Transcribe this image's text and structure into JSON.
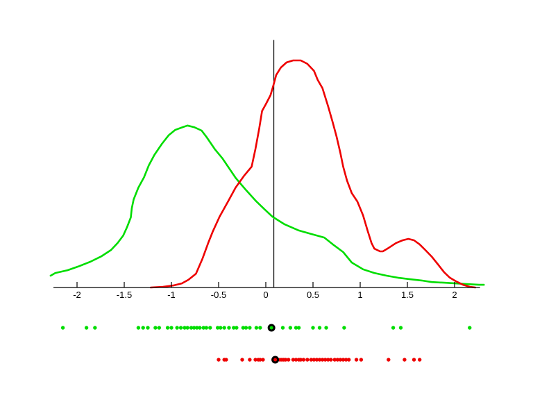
{
  "figure": {
    "background_color": "#ffffff",
    "axis_color": "#000000",
    "title": "",
    "green_color": "#00dd00",
    "red_color": "#ee0000"
  },
  "chart_data": {
    "type": "line",
    "title": "",
    "xlabel": "",
    "ylabel": "",
    "grid": false,
    "legend": null,
    "xlim": [
      -2.25,
      2.27
    ],
    "ylim": [
      0,
      1.09
    ],
    "y_units_note": "y axis unlabeled; density in relative units, red peak = 1",
    "x_ticks": [
      -2,
      -1.5,
      -1,
      -0.5,
      0,
      0.5,
      1,
      1.5,
      2
    ],
    "x_tick_labels": [
      "-2",
      "-1.5",
      "-1",
      "-0.5",
      "0",
      "0.5",
      "1",
      "1.5",
      "2"
    ],
    "vertical_line": {
      "x": 0.085,
      "y_bottom": 0,
      "y_top": 1.09,
      "color": "#000000"
    },
    "series": [
      {
        "name": "green-density",
        "color": "#00dd00",
        "points": [
          [
            -2.28,
            0.052
          ],
          [
            -2.23,
            0.064
          ],
          [
            -2.1,
            0.076
          ],
          [
            -1.99,
            0.092
          ],
          [
            -1.86,
            0.113
          ],
          [
            -1.74,
            0.138
          ],
          [
            -1.64,
            0.165
          ],
          [
            -1.57,
            0.196
          ],
          [
            -1.51,
            0.229
          ],
          [
            -1.47,
            0.266
          ],
          [
            -1.43,
            0.309
          ],
          [
            -1.42,
            0.349
          ],
          [
            -1.4,
            0.388
          ],
          [
            -1.35,
            0.44
          ],
          [
            -1.29,
            0.486
          ],
          [
            -1.24,
            0.538
          ],
          [
            -1.18,
            0.584
          ],
          [
            -1.1,
            0.633
          ],
          [
            -1.03,
            0.67
          ],
          [
            -0.96,
            0.694
          ],
          [
            -0.88,
            0.706
          ],
          [
            -0.83,
            0.713
          ],
          [
            -0.76,
            0.706
          ],
          [
            -0.68,
            0.691
          ],
          [
            -0.63,
            0.664
          ],
          [
            -0.54,
            0.609
          ],
          [
            -0.46,
            0.569
          ],
          [
            -0.4,
            0.532
          ],
          [
            -0.32,
            0.483
          ],
          [
            -0.22,
            0.434
          ],
          [
            -0.1,
            0.379
          ],
          [
            -0.01,
            0.343
          ],
          [
            0.07,
            0.312
          ],
          [
            0.2,
            0.278
          ],
          [
            0.35,
            0.251
          ],
          [
            0.49,
            0.235
          ],
          [
            0.62,
            0.22
          ],
          [
            0.71,
            0.19
          ],
          [
            0.82,
            0.156
          ],
          [
            0.91,
            0.11
          ],
          [
            1.03,
            0.08
          ],
          [
            1.15,
            0.064
          ],
          [
            1.28,
            0.052
          ],
          [
            1.4,
            0.043
          ],
          [
            1.52,
            0.037
          ],
          [
            1.65,
            0.031
          ],
          [
            1.76,
            0.024
          ],
          [
            1.89,
            0.021
          ],
          [
            2.01,
            0.018
          ],
          [
            2.13,
            0.015
          ],
          [
            2.26,
            0.012
          ],
          [
            2.31,
            0.012
          ]
        ]
      },
      {
        "name": "red-density",
        "color": "#ee0000",
        "points": [
          [
            -1.22,
            0.0
          ],
          [
            -1.09,
            0.003
          ],
          [
            -0.98,
            0.009
          ],
          [
            -0.89,
            0.018
          ],
          [
            -0.82,
            0.034
          ],
          [
            -0.74,
            0.061
          ],
          [
            -0.67,
            0.128
          ],
          [
            -0.61,
            0.196
          ],
          [
            -0.56,
            0.248
          ],
          [
            -0.49,
            0.312
          ],
          [
            -0.4,
            0.379
          ],
          [
            -0.32,
            0.44
          ],
          [
            -0.23,
            0.492
          ],
          [
            -0.15,
            0.532
          ],
          [
            -0.11,
            0.609
          ],
          [
            -0.07,
            0.7
          ],
          [
            -0.04,
            0.777
          ],
          [
            0.0,
            0.807
          ],
          [
            0.05,
            0.847
          ],
          [
            0.08,
            0.89
          ],
          [
            0.11,
            0.936
          ],
          [
            0.16,
            0.969
          ],
          [
            0.22,
            0.991
          ],
          [
            0.29,
            1.0
          ],
          [
            0.37,
            1.0
          ],
          [
            0.44,
            0.985
          ],
          [
            0.51,
            0.954
          ],
          [
            0.55,
            0.914
          ],
          [
            0.6,
            0.878
          ],
          [
            0.66,
            0.798
          ],
          [
            0.71,
            0.725
          ],
          [
            0.75,
            0.664
          ],
          [
            0.79,
            0.593
          ],
          [
            0.82,
            0.532
          ],
          [
            0.86,
            0.471
          ],
          [
            0.91,
            0.416
          ],
          [
            0.97,
            0.379
          ],
          [
            1.03,
            0.318
          ],
          [
            1.08,
            0.248
          ],
          [
            1.12,
            0.196
          ],
          [
            1.15,
            0.171
          ],
          [
            1.21,
            0.159
          ],
          [
            1.24,
            0.159
          ],
          [
            1.3,
            0.174
          ],
          [
            1.38,
            0.196
          ],
          [
            1.45,
            0.208
          ],
          [
            1.51,
            0.214
          ],
          [
            1.57,
            0.208
          ],
          [
            1.63,
            0.19
          ],
          [
            1.69,
            0.165
          ],
          [
            1.76,
            0.135
          ],
          [
            1.82,
            0.104
          ],
          [
            1.89,
            0.067
          ],
          [
            1.95,
            0.043
          ],
          [
            2.01,
            0.028
          ],
          [
            2.09,
            0.012
          ],
          [
            2.16,
            0.003
          ],
          [
            2.22,
            0.0
          ]
        ]
      }
    ],
    "rug_rows": [
      {
        "name": "green-samples",
        "color": "#00dd00",
        "highlight_x": 0.06,
        "values": [
          -2.15,
          -1.9,
          -1.81,
          -1.35,
          -1.3,
          -1.25,
          -1.17,
          -1.13,
          -1.04,
          -1.0,
          -0.94,
          -0.9,
          -0.86,
          -0.83,
          -0.79,
          -0.76,
          -0.73,
          -0.7,
          -0.66,
          -0.63,
          -0.59,
          -0.51,
          -0.48,
          -0.44,
          -0.39,
          -0.34,
          -0.31,
          -0.24,
          -0.21,
          -0.17,
          -0.1,
          -0.06,
          0.18,
          0.26,
          0.32,
          0.35,
          0.5,
          0.57,
          0.64,
          0.83,
          1.35,
          1.43,
          2.16
        ]
      },
      {
        "name": "red-samples",
        "color": "#ee0000",
        "highlight_x": 0.1,
        "values": [
          -0.5,
          -0.44,
          -0.42,
          -0.25,
          -0.17,
          -0.11,
          -0.08,
          -0.06,
          -0.03,
          0.15,
          0.17,
          0.19,
          0.21,
          0.24,
          0.29,
          0.32,
          0.35,
          0.37,
          0.4,
          0.44,
          0.48,
          0.51,
          0.54,
          0.57,
          0.6,
          0.63,
          0.66,
          0.69,
          0.73,
          0.76,
          0.79,
          0.82,
          0.85,
          0.88,
          0.96,
          1.01,
          1.3,
          1.47,
          1.57,
          1.63
        ]
      }
    ]
  }
}
